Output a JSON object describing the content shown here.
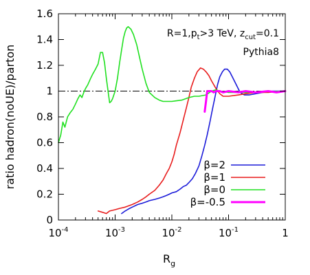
{
  "chart_data": {
    "type": "line",
    "xlabel": "R",
    "xlabel_sub": "g",
    "ylabel": "ratio hadron(noUE)/parton",
    "xscale": "log",
    "xlim": [
      0.0001,
      1
    ],
    "ylim": [
      0,
      1.6
    ],
    "grid": false,
    "legend_position": "bottom-right",
    "annotations": [
      {
        "id": "params",
        "parts": [
          {
            "t": "R=1,p",
            "s": ""
          },
          {
            "t": "t",
            "s": "sub"
          },
          {
            "t": ">3 TeV, z",
            "s": ""
          },
          {
            "t": "cut",
            "s": "sub"
          },
          {
            "t": "=0.1",
            "s": ""
          }
        ]
      },
      {
        "id": "generator",
        "parts": [
          {
            "t": "Pythia8",
            "s": ""
          }
        ]
      }
    ],
    "x_ticks": [
      {
        "value": 0.0001,
        "base": "10",
        "exp": "-4"
      },
      {
        "value": 0.001,
        "base": "10",
        "exp": "-3"
      },
      {
        "value": 0.01,
        "base": "10",
        "exp": "-2"
      },
      {
        "value": 0.1,
        "base": "10",
        "exp": "-1"
      },
      {
        "value": 1,
        "base": "1",
        "exp": ""
      }
    ],
    "y_ticks": [
      {
        "value": 0,
        "label": "0"
      },
      {
        "value": 0.2,
        "label": "0.2"
      },
      {
        "value": 0.4,
        "label": "0.4"
      },
      {
        "value": 0.6,
        "label": "0.6"
      },
      {
        "value": 0.8,
        "label": "0.8"
      },
      {
        "value": 1.0,
        "label": "1"
      },
      {
        "value": 1.2,
        "label": "1.2"
      },
      {
        "value": 1.4,
        "label": "1.4"
      },
      {
        "value": 1.6,
        "label": "1.6"
      }
    ],
    "reference_line": {
      "y": 1.0,
      "style": "dash-dot",
      "color": "#000000"
    },
    "series": [
      {
        "name": "β=2",
        "color": "#1a1ad9",
        "points": [
          [
            0.0013,
            0.05
          ],
          [
            0.0015,
            0.07
          ],
          [
            0.0018,
            0.09
          ],
          [
            0.002,
            0.1
          ],
          [
            0.0025,
            0.12
          ],
          [
            0.003,
            0.13
          ],
          [
            0.0035,
            0.14
          ],
          [
            0.004,
            0.15
          ],
          [
            0.005,
            0.16
          ],
          [
            0.006,
            0.17
          ],
          [
            0.007,
            0.18
          ],
          [
            0.008,
            0.19
          ],
          [
            0.009,
            0.2
          ],
          [
            0.01,
            0.21
          ],
          [
            0.012,
            0.22
          ],
          [
            0.014,
            0.24
          ],
          [
            0.016,
            0.26
          ],
          [
            0.018,
            0.27
          ],
          [
            0.02,
            0.29
          ],
          [
            0.023,
            0.32
          ],
          [
            0.026,
            0.36
          ],
          [
            0.03,
            0.42
          ],
          [
            0.034,
            0.5
          ],
          [
            0.038,
            0.58
          ],
          [
            0.042,
            0.66
          ],
          [
            0.047,
            0.76
          ],
          [
            0.052,
            0.86
          ],
          [
            0.058,
            0.96
          ],
          [
            0.064,
            1.05
          ],
          [
            0.07,
            1.11
          ],
          [
            0.078,
            1.15
          ],
          [
            0.085,
            1.17
          ],
          [
            0.095,
            1.17
          ],
          [
            0.105,
            1.15
          ],
          [
            0.12,
            1.1
          ],
          [
            0.14,
            1.04
          ],
          [
            0.16,
            0.99
          ],
          [
            0.19,
            0.97
          ],
          [
            0.23,
            0.97
          ],
          [
            0.3,
            0.98
          ],
          [
            0.4,
            0.99
          ],
          [
            0.6,
            1.0
          ],
          [
            1.0,
            1.0
          ]
        ]
      },
      {
        "name": "β=1",
        "color": "#e81c1c",
        "points": [
          [
            0.0005,
            0.07
          ],
          [
            0.0006,
            0.06
          ],
          [
            0.0007,
            0.05
          ],
          [
            0.0008,
            0.07
          ],
          [
            0.001,
            0.08
          ],
          [
            0.0012,
            0.09
          ],
          [
            0.0015,
            0.1
          ],
          [
            0.002,
            0.12
          ],
          [
            0.0025,
            0.14
          ],
          [
            0.003,
            0.16
          ],
          [
            0.0035,
            0.18
          ],
          [
            0.004,
            0.2
          ],
          [
            0.005,
            0.23
          ],
          [
            0.006,
            0.27
          ],
          [
            0.007,
            0.31
          ],
          [
            0.008,
            0.36
          ],
          [
            0.009,
            0.4
          ],
          [
            0.01,
            0.45
          ],
          [
            0.011,
            0.51
          ],
          [
            0.012,
            0.58
          ],
          [
            0.014,
            0.68
          ],
          [
            0.016,
            0.78
          ],
          [
            0.018,
            0.87
          ],
          [
            0.02,
            0.95
          ],
          [
            0.022,
            1.03
          ],
          [
            0.025,
            1.1
          ],
          [
            0.028,
            1.15
          ],
          [
            0.032,
            1.18
          ],
          [
            0.036,
            1.17
          ],
          [
            0.04,
            1.15
          ],
          [
            0.045,
            1.12
          ],
          [
            0.05,
            1.08
          ],
          [
            0.06,
            1.02
          ],
          [
            0.07,
            0.98
          ],
          [
            0.08,
            0.96
          ],
          [
            0.1,
            0.96
          ],
          [
            0.15,
            0.97
          ],
          [
            0.2,
            0.98
          ],
          [
            0.3,
            0.99
          ],
          [
            0.5,
            0.99
          ],
          [
            1.0,
            1.0
          ]
        ]
      },
      {
        "name": "β=0",
        "color": "#1ee01e",
        "points": [
          [
            0.0001,
            0.6
          ],
          [
            0.00011,
            0.66
          ],
          [
            0.00012,
            0.76
          ],
          [
            0.00013,
            0.72
          ],
          [
            0.000145,
            0.8
          ],
          [
            0.00016,
            0.83
          ],
          [
            0.00018,
            0.86
          ],
          [
            0.0002,
            0.9
          ],
          [
            0.00022,
            0.94
          ],
          [
            0.00024,
            0.97
          ],
          [
            0.00026,
            0.95
          ],
          [
            0.00028,
            0.99
          ],
          [
            0.0003,
            1.02
          ],
          [
            0.00033,
            1.05
          ],
          [
            0.00037,
            1.1
          ],
          [
            0.0004,
            1.13
          ],
          [
            0.00045,
            1.17
          ],
          [
            0.0005,
            1.21
          ],
          [
            0.00055,
            1.3
          ],
          [
            0.0006,
            1.3
          ],
          [
            0.00065,
            1.22
          ],
          [
            0.0007,
            1.1
          ],
          [
            0.00075,
            1.0
          ],
          [
            0.0008,
            0.91
          ],
          [
            0.00085,
            0.92
          ],
          [
            0.0009,
            0.94
          ],
          [
            0.001,
            1.0
          ],
          [
            0.0011,
            1.1
          ],
          [
            0.0012,
            1.22
          ],
          [
            0.0013,
            1.32
          ],
          [
            0.0014,
            1.41
          ],
          [
            0.0015,
            1.46
          ],
          [
            0.0016,
            1.49
          ],
          [
            0.0017,
            1.5
          ],
          [
            0.0019,
            1.48
          ],
          [
            0.0021,
            1.44
          ],
          [
            0.0024,
            1.36
          ],
          [
            0.0027,
            1.26
          ],
          [
            0.003,
            1.17
          ],
          [
            0.0035,
            1.06
          ],
          [
            0.004,
            0.99
          ],
          [
            0.005,
            0.95
          ],
          [
            0.006,
            0.93
          ],
          [
            0.007,
            0.92
          ],
          [
            0.01,
            0.92
          ],
          [
            0.015,
            0.93
          ],
          [
            0.02,
            0.95
          ],
          [
            0.025,
            0.96
          ],
          [
            0.03,
            0.96
          ],
          [
            0.04,
            0.97
          ],
          [
            0.05,
            1.0
          ],
          [
            0.06,
            1.01
          ],
          [
            0.07,
            1.0
          ],
          [
            0.1,
            0.99
          ],
          [
            0.2,
            0.99
          ],
          [
            1.0,
            1.0
          ]
        ]
      },
      {
        "name": "β=-0.5",
        "color": "#ff00ff",
        "points": [
          [
            0.038,
            0.84
          ],
          [
            0.04,
            0.92
          ],
          [
            0.042,
            1.0
          ],
          [
            0.045,
            1.0
          ],
          [
            0.05,
            1.0
          ],
          [
            0.055,
            0.99
          ],
          [
            0.06,
            1.0
          ],
          [
            0.07,
            1.0
          ],
          [
            0.08,
            0.99
          ],
          [
            0.1,
            1.0
          ],
          [
            0.15,
            0.99
          ],
          [
            0.2,
            1.0
          ],
          [
            0.3,
            0.99
          ],
          [
            0.5,
            1.0
          ],
          [
            0.7,
            0.99
          ],
          [
            1.0,
            1.0
          ]
        ]
      }
    ]
  }
}
